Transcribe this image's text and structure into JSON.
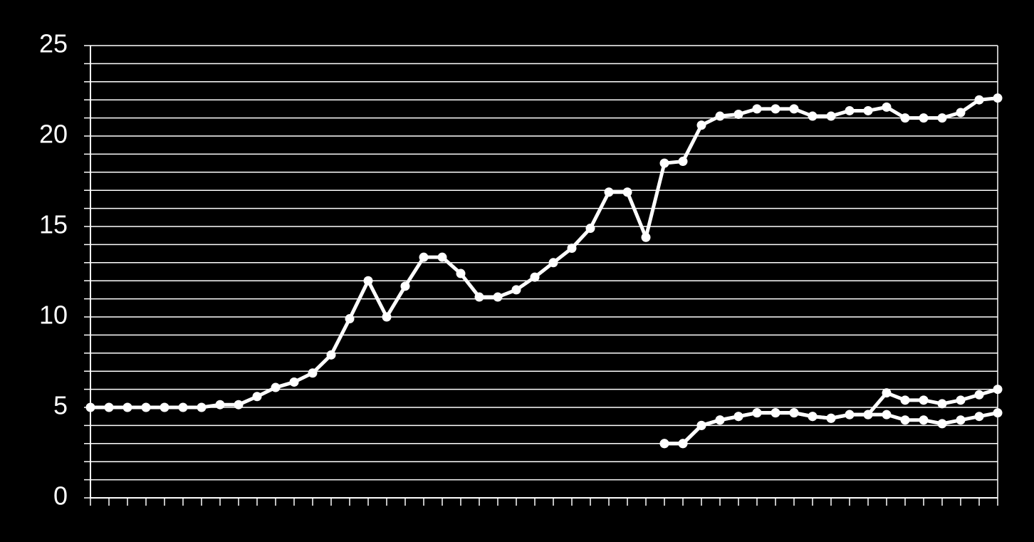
{
  "chart_data": {
    "type": "line",
    "categories": [
      null,
      null,
      null,
      null,
      null,
      null,
      null,
      null,
      null,
      null,
      null,
      null,
      null,
      null,
      null,
      null,
      null,
      null,
      null,
      null,
      null,
      null,
      null,
      null,
      null,
      null,
      null,
      null,
      null,
      null,
      null,
      null,
      null,
      null,
      null,
      null,
      null,
      null,
      null,
      null,
      null,
      null,
      null,
      null,
      null,
      null,
      null,
      null,
      null,
      null
    ],
    "series": [
      {
        "color": "#ffffff",
        "values": [
          5.0,
          5.0,
          5.0,
          5.0,
          5.0,
          5.0,
          5.0,
          5.15,
          5.15,
          5.6,
          6.1,
          6.4,
          6.9,
          7.9,
          9.9,
          12.0,
          10.0,
          11.7,
          13.3,
          13.3,
          12.4,
          11.1,
          11.1,
          11.5,
          12.2,
          13.0,
          13.8,
          14.9,
          16.9,
          16.9,
          14.4,
          18.5,
          18.6,
          20.6,
          21.1,
          21.2,
          21.5,
          21.5,
          21.5,
          21.1,
          21.1,
          21.4,
          21.4,
          21.6,
          21.0,
          21.0,
          21.0,
          21.3,
          22.0,
          22.1
        ]
      },
      {
        "color": "#ffffff",
        "values": [
          null,
          null,
          null,
          null,
          null,
          null,
          null,
          null,
          null,
          null,
          null,
          null,
          null,
          null,
          null,
          null,
          null,
          null,
          null,
          null,
          null,
          null,
          null,
          null,
          null,
          null,
          null,
          null,
          null,
          null,
          null,
          3.0,
          3.0,
          4.0,
          4.3,
          4.5,
          4.7,
          4.7,
          4.7,
          4.5,
          4.4,
          4.6,
          4.6,
          5.8,
          5.4,
          5.4,
          5.2,
          5.4,
          5.7,
          6.0
        ]
      },
      {
        "color": "#ffffff",
        "values": [
          null,
          null,
          null,
          null,
          null,
          null,
          null,
          null,
          null,
          null,
          null,
          null,
          null,
          null,
          null,
          null,
          null,
          null,
          null,
          null,
          null,
          null,
          null,
          null,
          null,
          null,
          null,
          null,
          null,
          null,
          null,
          3.0,
          3.0,
          4.0,
          4.3,
          4.5,
          4.7,
          4.7,
          4.7,
          4.5,
          4.4,
          4.6,
          4.6,
          4.6,
          4.3,
          4.3,
          4.1,
          4.3,
          4.5,
          4.7
        ]
      }
    ],
    "ylim": [
      0,
      25
    ],
    "yticks": [
      0,
      5,
      10,
      15,
      20,
      25
    ],
    "minor_yticks": [
      0,
      1,
      2,
      3,
      4,
      5,
      6,
      7,
      8,
      9,
      10,
      11,
      12,
      13,
      14,
      15,
      16,
      17,
      18,
      19,
      20,
      21,
      22,
      23,
      24,
      25
    ],
    "grid": true
  }
}
